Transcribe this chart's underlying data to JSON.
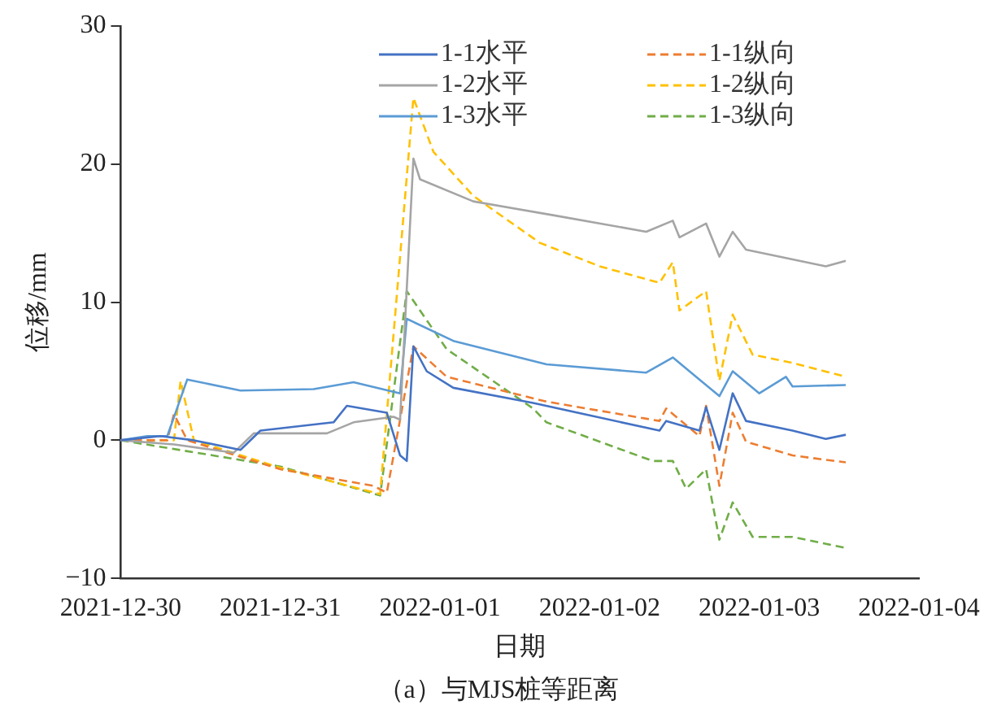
{
  "chart_data": {
    "type": "line",
    "xlabel": "日期",
    "ylabel": "位移/mm",
    "annotations": [
      "（a）与MJS桩等距离"
    ],
    "xlim": [
      "2021-12-30",
      "2022-01-04"
    ],
    "xticks": [
      "2021-12-30",
      "2021-12-31",
      "2022-01-01",
      "2022-01-02",
      "2022-01-03",
      "2022-01-04"
    ],
    "ylim": [
      -10,
      30
    ],
    "yticks": [
      -10,
      0,
      10,
      20,
      30
    ],
    "grid": false,
    "legend": "top right",
    "marker": "none",
    "series": [
      {
        "name": "1-1水平",
        "color": "#4472c4",
        "line_style": "solid",
        "x": [
          "2021-12-30T00:00",
          "2021-12-30T06:00",
          "2021-12-30T11:00",
          "2021-12-30T18:00",
          "2021-12-30T21:00",
          "2021-12-31T08:00",
          "2021-12-31T10:00",
          "2021-12-31T16:00",
          "2021-12-31T18:00",
          "2021-12-31T19:00",
          "2021-12-31T20:00",
          "2021-12-31T22:00",
          "2022-01-01T02:00",
          "2022-01-01T14:00",
          "2022-01-02T09:00",
          "2022-01-02T10:00",
          "2022-01-02T15:00",
          "2022-01-02T16:00",
          "2022-01-02T18:00",
          "2022-01-02T20:00",
          "2022-01-02T22:00",
          "2022-01-03T05:00",
          "2022-01-03T10:00",
          "2022-01-03T13:00"
        ],
        "values": [
          0,
          0.3,
          0,
          -0.7,
          0.7,
          1.3,
          2.5,
          2.0,
          -1.1,
          -1.5,
          6.8,
          5.0,
          3.8,
          2.7,
          0.7,
          1.4,
          0.7,
          2.4,
          -0.7,
          3.4,
          1.4,
          0.7,
          0.1,
          0.4
        ]
      },
      {
        "name": "1-2水平",
        "color": "#a5a5a5",
        "line_style": "solid",
        "x": [
          "2021-12-30T00:00",
          "2021-12-30T08:00",
          "2021-12-30T17:00",
          "2021-12-30T20:00",
          "2021-12-31T07:00",
          "2021-12-31T11:00",
          "2021-12-31T17:00",
          "2021-12-31T18:00",
          "2021-12-31T20:00",
          "2021-12-31T21:00",
          "2022-01-01T05:00",
          "2022-01-01T17:00",
          "2022-01-02T07:00",
          "2022-01-02T11:00",
          "2022-01-02T12:00",
          "2022-01-02T16:00",
          "2022-01-02T18:00",
          "2022-01-02T20:00",
          "2022-01-02T22:00",
          "2022-01-03T10:00",
          "2022-01-03T13:00"
        ],
        "values": [
          0,
          -0.3,
          -0.9,
          0.5,
          0.5,
          1.3,
          1.7,
          1.5,
          20.4,
          18.9,
          17.3,
          16.3,
          15.1,
          15.9,
          14.7,
          15.7,
          13.3,
          15.1,
          13.8,
          12.6,
          13.0
        ]
      },
      {
        "name": "1-3水平",
        "color": "#5b9bd5",
        "line_style": "solid",
        "x": [
          "2021-12-30T00:00",
          "2021-12-30T04:00",
          "2021-12-30T07:00",
          "2021-12-30T10:00",
          "2021-12-30T18:00",
          "2021-12-31T05:00",
          "2021-12-31T11:00",
          "2021-12-31T18:00",
          "2021-12-31T19:00",
          "2022-01-01T02:00",
          "2022-01-01T16:00",
          "2022-01-02T07:00",
          "2022-01-02T11:00",
          "2022-01-02T15:00",
          "2022-01-02T18:00",
          "2022-01-02T20:00",
          "2022-01-03T00:00",
          "2022-01-03T04:00",
          "2022-01-03T05:00",
          "2022-01-03T13:00"
        ],
        "values": [
          0,
          0.3,
          0.3,
          4.4,
          3.6,
          3.7,
          4.2,
          3.4,
          8.8,
          7.2,
          5.5,
          4.9,
          6.0,
          4.4,
          3.2,
          5.0,
          3.4,
          4.6,
          3.9,
          4.0
        ]
      },
      {
        "name": "1-1纵向",
        "color": "#ed7d31",
        "line_style": "dashed",
        "x": [
          "2021-12-30T00:00",
          "2021-12-30T07:00",
          "2021-12-30T08:00",
          "2021-12-30T10:00",
          "2021-12-31T00:00",
          "2021-12-31T14:00",
          "2021-12-31T16:00",
          "2021-12-31T20:00",
          "2022-01-01T01:00",
          "2022-01-01T16:00",
          "2022-01-02T09:00",
          "2022-01-02T10:00",
          "2022-01-02T15:00",
          "2022-01-02T16:00",
          "2022-01-02T18:00",
          "2022-01-02T20:00",
          "2022-01-02T22:00",
          "2022-01-03T05:00",
          "2022-01-03T13:00"
        ],
        "values": [
          0,
          0,
          1.9,
          0,
          -2.1,
          -3.3,
          -3.8,
          6.8,
          4.6,
          2.8,
          1.4,
          2.3,
          0.3,
          2.5,
          -3.3,
          2.0,
          -0.1,
          -1.1,
          -1.6
        ]
      },
      {
        "name": "1-2纵向",
        "color": "#ffc000",
        "line_style": "dashed",
        "x": [
          "2021-12-30T00:00",
          "2021-12-30T08:00",
          "2021-12-30T09:00",
          "2021-12-30T11:00",
          "2021-12-31T00:00",
          "2021-12-31T15:00",
          "2021-12-31T20:00",
          "2021-12-31T23:00",
          "2022-01-01T05:00",
          "2022-01-01T15:00",
          "2022-01-02T00:00",
          "2022-01-02T09:00",
          "2022-01-02T11:00",
          "2022-01-02T12:00",
          "2022-01-02T16:00",
          "2022-01-02T18:00",
          "2022-01-02T20:00",
          "2022-01-02T23:00",
          "2022-01-03T05:00",
          "2022-01-03T13:00"
        ],
        "values": [
          0,
          0,
          4.3,
          0,
          -2.0,
          -3.9,
          24.8,
          20.9,
          17.7,
          14.3,
          12.6,
          11.4,
          12.9,
          9.4,
          10.8,
          4.3,
          9.1,
          6.2,
          5.6,
          4.6
        ]
      },
      {
        "name": "1-3纵向",
        "color": "#70ad47",
        "line_style": "dashed",
        "x": [
          "2021-12-30T00:00",
          "2021-12-31T00:00",
          "2021-12-31T15:00",
          "2021-12-31T19:00",
          "2022-01-01T01:00",
          "2022-01-01T14:00",
          "2022-01-01T16:00",
          "2022-01-02T08:00",
          "2022-01-02T11:00",
          "2022-01-02T13:00",
          "2022-01-02T16:00",
          "2022-01-02T18:00",
          "2022-01-02T20:00",
          "2022-01-02T23:00",
          "2022-01-03T05:00",
          "2022-01-03T13:00"
        ],
        "values": [
          0,
          -1.9,
          -4.0,
          10.8,
          6.6,
          2.3,
          1.3,
          -1.5,
          -1.5,
          -3.5,
          -2.1,
          -7.2,
          -4.5,
          -7.0,
          -7.0,
          -7.8
        ]
      }
    ]
  }
}
